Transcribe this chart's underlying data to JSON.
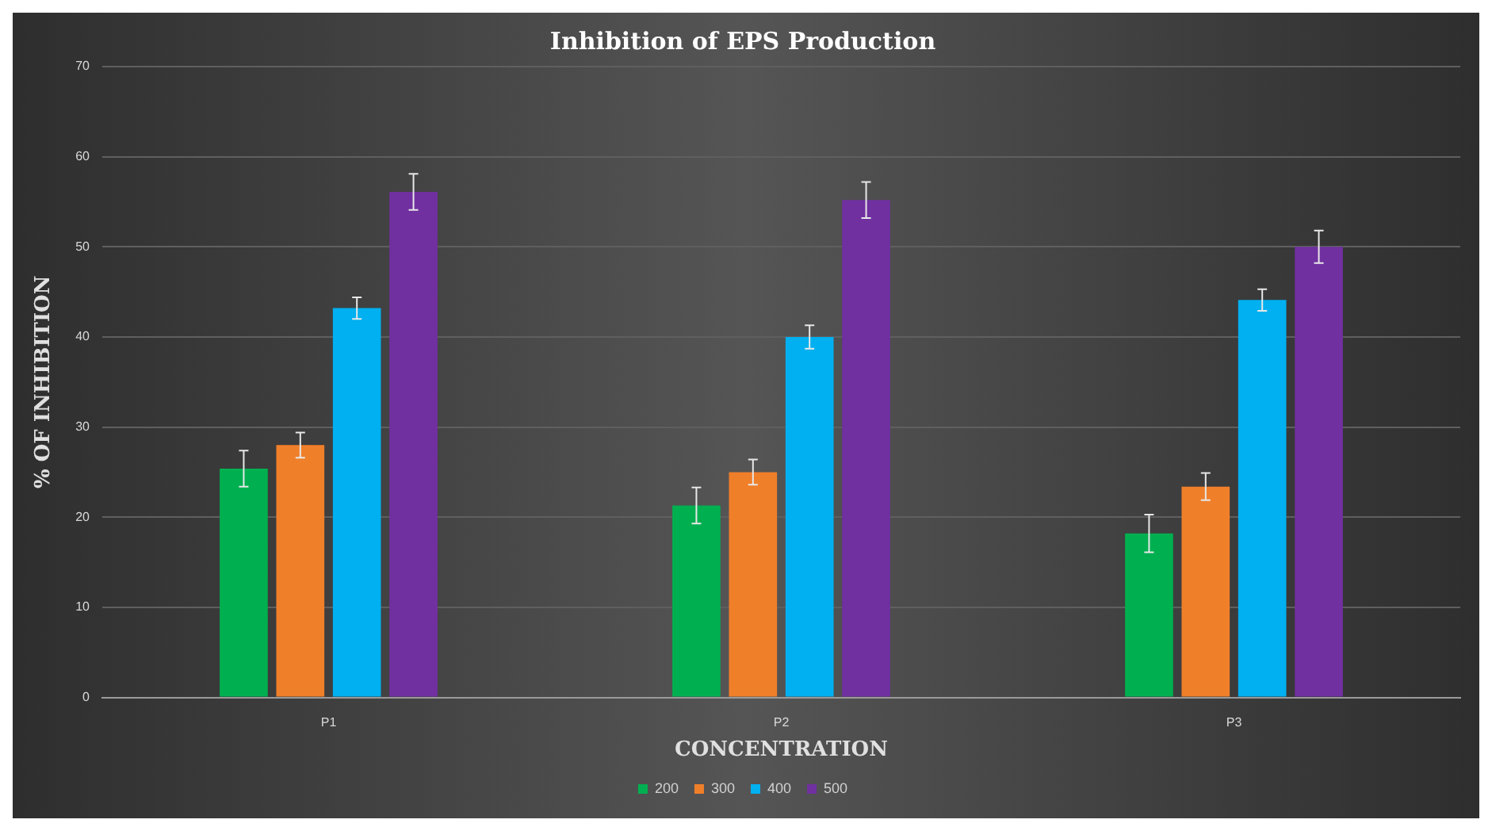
{
  "chart_data": {
    "type": "bar",
    "title": "Inhibition of EPS Production",
    "xlabel": "CONCENTRATION",
    "ylabel": "% OF INHIBITION",
    "categories": [
      "P1",
      "P2",
      "P3"
    ],
    "series": [
      {
        "name": "200",
        "color": "#00b050",
        "values": [
          25.4,
          21.3,
          18.2
        ],
        "errors": [
          2,
          2,
          2.1
        ]
      },
      {
        "name": "300",
        "color": "#f07f2a",
        "values": [
          28,
          25,
          23.4
        ],
        "errors": [
          1.4,
          1.4,
          1.5
        ]
      },
      {
        "name": "400",
        "color": "#00b0f0",
        "values": [
          43.2,
          40,
          44.1
        ],
        "errors": [
          1.2,
          1.3,
          1.2
        ]
      },
      {
        "name": "500",
        "color": "#7030a0",
        "values": [
          56.1,
          55.2,
          50
        ],
        "errors": [
          2,
          2,
          1.8
        ]
      }
    ],
    "ylim": [
      0,
      70
    ],
    "yticks": [
      0,
      10,
      20,
      30,
      40,
      50,
      60,
      70
    ],
    "grid": "y",
    "legend": "bottom"
  }
}
